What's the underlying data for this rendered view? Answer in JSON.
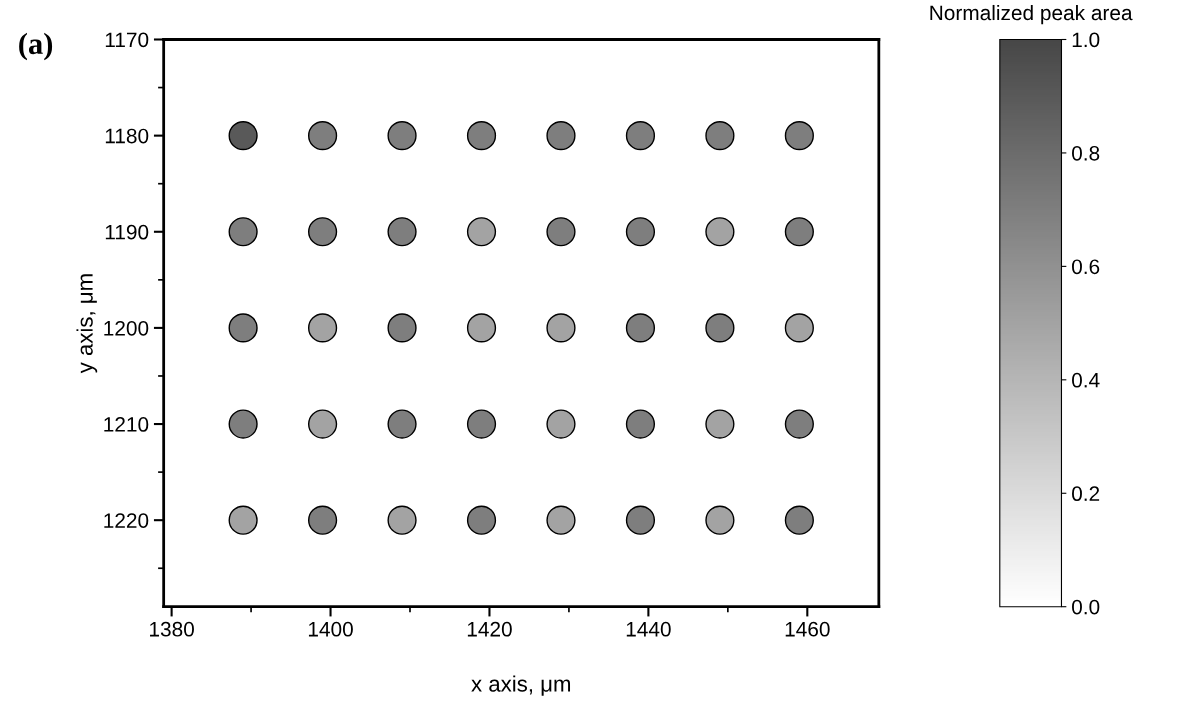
{
  "chart_data": {
    "type": "scatter",
    "xlabel": "x axis, μm",
    "ylabel": "y axis, μm",
    "clabel": "Normalized peak area",
    "x": [
      1389,
      1399,
      1409,
      1419,
      1429,
      1439,
      1449,
      1459,
      1389,
      1399,
      1409,
      1419,
      1429,
      1439,
      1449,
      1459,
      1389,
      1399,
      1409,
      1419,
      1429,
      1439,
      1449,
      1459,
      1389,
      1399,
      1409,
      1419,
      1429,
      1439,
      1449,
      1459,
      1389,
      1399,
      1409,
      1419,
      1429,
      1439,
      1449,
      1459
    ],
    "values": [
      1180,
      1180,
      1180,
      1180,
      1180,
      1180,
      1180,
      1180,
      1190,
      1190,
      1190,
      1190,
      1190,
      1190,
      1190,
      1190,
      1200,
      1200,
      1200,
      1200,
      1200,
      1200,
      1200,
      1200,
      1210,
      1210,
      1210,
      1210,
      1210,
      1210,
      1210,
      1210,
      1220,
      1220,
      1220,
      1220,
      1220,
      1220,
      1220,
      1220
    ],
    "cvalues": [
      0.9,
      0.7,
      0.7,
      0.7,
      0.7,
      0.7,
      0.7,
      0.7,
      0.7,
      0.7,
      0.7,
      0.5,
      0.7,
      0.7,
      0.5,
      0.7,
      0.7,
      0.5,
      0.7,
      0.5,
      0.5,
      0.7,
      0.7,
      0.5,
      0.7,
      0.5,
      0.7,
      0.7,
      0.5,
      0.7,
      0.5,
      0.7,
      0.5,
      0.7,
      0.5,
      0.7,
      0.5,
      0.7,
      0.5,
      0.7
    ],
    "marker": "circle",
    "clim": [
      0,
      1
    ],
    "cticks": [
      {
        "value": 0,
        "label": "0.0"
      },
      {
        "value": 0.2,
        "label": "0.2"
      },
      {
        "value": 0.4,
        "label": "0.4"
      },
      {
        "value": 0.6,
        "label": "0.6"
      },
      {
        "value": 0.8,
        "label": "0.8"
      },
      {
        "value": 1,
        "label": "1.0"
      }
    ],
    "xlim": [
      1379,
      1469
    ],
    "xticks": [
      1380,
      1400,
      1420,
      1440,
      1460
    ],
    "ylim": [
      1229,
      1170
    ],
    "yticks": [
      1170,
      1180,
      1190,
      1200,
      1210,
      1220
    ],
    "annotations": [
      "(a)"
    ]
  }
}
